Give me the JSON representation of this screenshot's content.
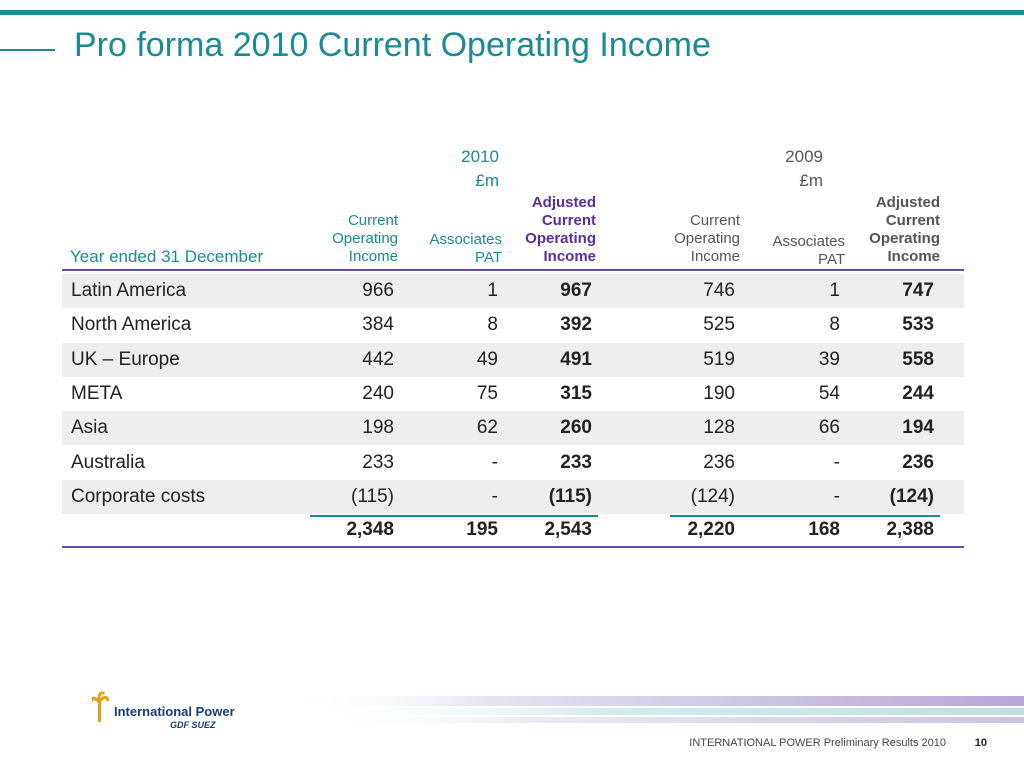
{
  "title": "Pro forma 2010 Current Operating Income",
  "table": {
    "row_header": "Year ended 31 December",
    "periods": [
      {
        "year": "2010",
        "unit": "£m"
      },
      {
        "year": "2009",
        "unit": "£m"
      }
    ],
    "column_headers": {
      "coi": [
        "Current",
        "Operating",
        "Income"
      ],
      "assoc": [
        "Associates",
        "PAT"
      ],
      "adj": [
        "Adjusted",
        "Current",
        "Operating",
        "Income"
      ]
    },
    "rows": [
      {
        "label": "Latin America",
        "values": [
          "966",
          "1",
          "967",
          "746",
          "1",
          "747"
        ]
      },
      {
        "label": "North America",
        "values": [
          "384",
          "8",
          "392",
          "525",
          "8",
          "533"
        ]
      },
      {
        "label": "UK – Europe",
        "values": [
          "442",
          "49",
          "491",
          "519",
          "39",
          "558"
        ]
      },
      {
        "label": "META",
        "values": [
          "240",
          "75",
          "315",
          "190",
          "54",
          "244"
        ]
      },
      {
        "label": "Asia",
        "values": [
          "198",
          "62",
          "260",
          "128",
          "66",
          "194"
        ]
      },
      {
        "label": "Australia",
        "values": [
          "233",
          "-",
          "233",
          "236",
          "-",
          "236"
        ]
      },
      {
        "label": "Corporate costs",
        "values": [
          "(115)",
          "-",
          "(115)",
          "(124)",
          "-",
          "(124)"
        ]
      }
    ],
    "totals": [
      "2,348",
      "195",
      "2,543",
      "2,220",
      "168",
      "2,388"
    ]
  },
  "footer": {
    "text": "INTERNATIONAL POWER Preliminary Results 2010",
    "page": "10",
    "logo_text": "International Power",
    "logo_subtext": "GDF SUEZ"
  },
  "colors": {
    "accent": "#1a8a93",
    "purple": "#5b2d9e"
  }
}
